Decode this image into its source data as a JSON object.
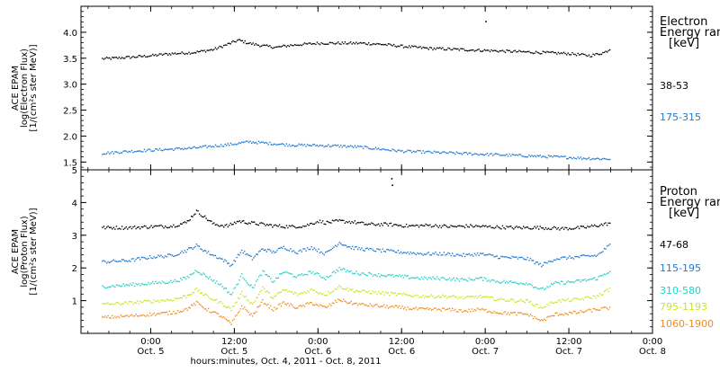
{
  "x_axis": {
    "ticks": [
      {
        "hours": 0,
        "time": "0:00",
        "date": "Oct. 5"
      },
      {
        "hours": 12,
        "time": "12:00",
        "date": "Oct. 5"
      },
      {
        "hours": 24,
        "time": "0:00",
        "date": "Oct. 6"
      },
      {
        "hours": 36,
        "time": "12:00",
        "date": "Oct. 6"
      },
      {
        "hours": 48,
        "time": "0:00",
        "date": "Oct. 7"
      },
      {
        "hours": 60,
        "time": "12:00",
        "date": "Oct. 7"
      },
      {
        "hours": 72,
        "time": "0:00",
        "date": "Oct. 8"
      }
    ],
    "label": "hours:minutes, Oct.  4, 2011 - Oct.  8, 2011"
  },
  "chart_data": [
    {
      "type": "scatter",
      "panel": "electron",
      "ylabel": [
        "ACE EPAM",
        "log(Electron Flux)",
        "[1/(cm²s ster MeV)]"
      ],
      "ylim": [
        1.35,
        4.5
      ],
      "yticks": [
        "1.5",
        "2.0",
        "2.5",
        "3.0",
        "3.5",
        "4.0"
      ],
      "legend_title": [
        "Electron",
        "Energy ran",
        "[keV]"
      ],
      "series": [
        {
          "name": "38-53",
          "color": "#000000",
          "points": [
            [
              -7,
              3.5
            ],
            [
              -3,
              3.53
            ],
            [
              0,
              3.56
            ],
            [
              3,
              3.6
            ],
            [
              6,
              3.62
            ],
            [
              9,
              3.68
            ],
            [
              11,
              3.78
            ],
            [
              12.5,
              3.86
            ],
            [
              14,
              3.8
            ],
            [
              16,
              3.75
            ],
            [
              18,
              3.72
            ],
            [
              20,
              3.76
            ],
            [
              22,
              3.78
            ],
            [
              24,
              3.8
            ],
            [
              27,
              3.8
            ],
            [
              30,
              3.8
            ],
            [
              33,
              3.78
            ],
            [
              36,
              3.74
            ],
            [
              40,
              3.7
            ],
            [
              44,
              3.68
            ],
            [
              48,
              3.66
            ],
            [
              52,
              3.64
            ],
            [
              56,
              3.62
            ],
            [
              60,
              3.6
            ],
            [
              63,
              3.56
            ],
            [
              65,
              3.62
            ],
            [
              66,
              3.7
            ]
          ]
        },
        {
          "name": "175-315",
          "color": "#1e78d2",
          "points": [
            [
              -7,
              1.68
            ],
            [
              -3,
              1.72
            ],
            [
              0,
              1.74
            ],
            [
              3,
              1.76
            ],
            [
              6,
              1.78
            ],
            [
              9,
              1.82
            ],
            [
              12,
              1.86
            ],
            [
              14,
              1.9
            ],
            [
              16,
              1.88
            ],
            [
              18,
              1.86
            ],
            [
              20,
              1.84
            ],
            [
              24,
              1.83
            ],
            [
              27,
              1.82
            ],
            [
              30,
              1.8
            ],
            [
              33,
              1.76
            ],
            [
              36,
              1.72
            ],
            [
              40,
              1.7
            ],
            [
              44,
              1.68
            ],
            [
              48,
              1.66
            ],
            [
              52,
              1.64
            ],
            [
              56,
              1.62
            ],
            [
              60,
              1.6
            ],
            [
              63,
              1.58
            ],
            [
              66,
              1.57
            ]
          ]
        }
      ],
      "outliers": [
        [
          48,
          4.22
        ]
      ]
    },
    {
      "type": "scatter",
      "panel": "proton",
      "ylabel": [
        "ACE EPAM",
        "log(Proton Flux)",
        "[1/(cm²s ster MeV)]"
      ],
      "ylim": [
        0,
        5.0
      ],
      "yticks": [
        "1",
        "2",
        "3",
        "4",
        "5"
      ],
      "legend_title": [
        "Proton",
        "Energy ran",
        "[keV]"
      ],
      "series": [
        {
          "name": "47-68",
          "color": "#000000",
          "points": [
            [
              -7,
              3.25
            ],
            [
              -3,
              3.25
            ],
            [
              0,
              3.28
            ],
            [
              3,
              3.3
            ],
            [
              5,
              3.4
            ],
            [
              6.5,
              3.75
            ],
            [
              7.5,
              3.6
            ],
            [
              9,
              3.35
            ],
            [
              11,
              3.3
            ],
            [
              12.5,
              3.45
            ],
            [
              14,
              3.4
            ],
            [
              16,
              3.35
            ],
            [
              18,
              3.3
            ],
            [
              20,
              3.28
            ],
            [
              22,
              3.3
            ],
            [
              24,
              3.45
            ],
            [
              25,
              3.4
            ],
            [
              27,
              3.45
            ],
            [
              29,
              3.42
            ],
            [
              31,
              3.35
            ],
            [
              34,
              3.35
            ],
            [
              37,
              3.3
            ],
            [
              40,
              3.32
            ],
            [
              43,
              3.28
            ],
            [
              46,
              3.3
            ],
            [
              48,
              3.28
            ],
            [
              52,
              3.25
            ],
            [
              56,
              3.25
            ],
            [
              59,
              3.22
            ],
            [
              62,
              3.25
            ],
            [
              65,
              3.35
            ],
            [
              66,
              3.4
            ]
          ]
        },
        {
          "name": "115-195",
          "color": "#1e78d2",
          "points": [
            [
              -7,
              2.2
            ],
            [
              -3,
              2.25
            ],
            [
              0,
              2.35
            ],
            [
              3,
              2.4
            ],
            [
              5,
              2.55
            ],
            [
              6.5,
              2.7
            ],
            [
              8,
              2.5
            ],
            [
              10,
              2.3
            ],
            [
              11.5,
              2.1
            ],
            [
              13,
              2.55
            ],
            [
              14.5,
              2.3
            ],
            [
              16,
              2.6
            ],
            [
              17.5,
              2.5
            ],
            [
              19,
              2.65
            ],
            [
              21,
              2.5
            ],
            [
              23,
              2.65
            ],
            [
              25,
              2.45
            ],
            [
              27,
              2.8
            ],
            [
              28.5,
              2.65
            ],
            [
              30,
              2.6
            ],
            [
              33,
              2.55
            ],
            [
              36,
              2.5
            ],
            [
              39,
              2.45
            ],
            [
              42,
              2.45
            ],
            [
              45,
              2.4
            ],
            [
              47,
              2.45
            ],
            [
              50,
              2.35
            ],
            [
              54,
              2.3
            ],
            [
              56,
              2.1
            ],
            [
              58,
              2.3
            ],
            [
              61,
              2.35
            ],
            [
              64,
              2.4
            ],
            [
              66,
              2.75
            ]
          ]
        },
        {
          "name": "310-580",
          "color": "#20d2c8",
          "points": [
            [
              -7,
              1.45
            ],
            [
              -3,
              1.5
            ],
            [
              0,
              1.55
            ],
            [
              3,
              1.6
            ],
            [
              5,
              1.7
            ],
            [
              6.5,
              1.95
            ],
            [
              8,
              1.75
            ],
            [
              10,
              1.5
            ],
            [
              11.5,
              1.2
            ],
            [
              13,
              1.8
            ],
            [
              14.5,
              1.4
            ],
            [
              16,
              1.9
            ],
            [
              17.5,
              1.6
            ],
            [
              19,
              1.9
            ],
            [
              21,
              1.75
            ],
            [
              23,
              1.9
            ],
            [
              25,
              1.7
            ],
            [
              27,
              2.0
            ],
            [
              28.5,
              1.9
            ],
            [
              30,
              1.85
            ],
            [
              33,
              1.8
            ],
            [
              36,
              1.75
            ],
            [
              39,
              1.7
            ],
            [
              42,
              1.7
            ],
            [
              45,
              1.65
            ],
            [
              47,
              1.7
            ],
            [
              50,
              1.6
            ],
            [
              54,
              1.55
            ],
            [
              56,
              1.35
            ],
            [
              58,
              1.55
            ],
            [
              61,
              1.6
            ],
            [
              64,
              1.7
            ],
            [
              66,
              1.95
            ]
          ]
        },
        {
          "name": "795-1193",
          "color": "#c8e61e",
          "points": [
            [
              -7,
              0.9
            ],
            [
              -3,
              0.95
            ],
            [
              0,
              1.0
            ],
            [
              3,
              1.05
            ],
            [
              5,
              1.15
            ],
            [
              6.5,
              1.35
            ],
            [
              8,
              1.15
            ],
            [
              10,
              0.95
            ],
            [
              11.5,
              0.75
            ],
            [
              13,
              1.25
            ],
            [
              14.5,
              0.9
            ],
            [
              16,
              1.4
            ],
            [
              17.5,
              1.1
            ],
            [
              19,
              1.35
            ],
            [
              21,
              1.2
            ],
            [
              23,
              1.35
            ],
            [
              25,
              1.2
            ],
            [
              27,
              1.45
            ],
            [
              28.5,
              1.35
            ],
            [
              30,
              1.3
            ],
            [
              33,
              1.25
            ],
            [
              36,
              1.2
            ],
            [
              39,
              1.15
            ],
            [
              42,
              1.15
            ],
            [
              45,
              1.1
            ],
            [
              47,
              1.15
            ],
            [
              50,
              1.05
            ],
            [
              54,
              1.0
            ],
            [
              56,
              0.8
            ],
            [
              58,
              1.0
            ],
            [
              61,
              1.05
            ],
            [
              64,
              1.15
            ],
            [
              66,
              1.4
            ]
          ]
        },
        {
          "name": "1060-1900",
          "color": "#f08c1e",
          "points": [
            [
              -7,
              0.5
            ],
            [
              -3,
              0.55
            ],
            [
              0,
              0.6
            ],
            [
              3,
              0.65
            ],
            [
              5,
              0.75
            ],
            [
              6.5,
              0.95
            ],
            [
              8,
              0.75
            ],
            [
              10,
              0.55
            ],
            [
              11.5,
              0.3
            ],
            [
              13,
              0.85
            ],
            [
              14.5,
              0.55
            ],
            [
              16,
              1.0
            ],
            [
              17.5,
              0.75
            ],
            [
              19,
              0.95
            ],
            [
              21,
              0.8
            ],
            [
              23,
              0.95
            ],
            [
              25,
              0.8
            ],
            [
              27,
              1.05
            ],
            [
              28.5,
              0.95
            ],
            [
              30,
              0.9
            ],
            [
              33,
              0.85
            ],
            [
              36,
              0.8
            ],
            [
              39,
              0.75
            ],
            [
              42,
              0.75
            ],
            [
              45,
              0.7
            ],
            [
              47,
              0.75
            ],
            [
              50,
              0.65
            ],
            [
              54,
              0.6
            ],
            [
              56,
              0.4
            ],
            [
              58,
              0.6
            ],
            [
              61,
              0.65
            ],
            [
              64,
              0.75
            ],
            [
              66,
              0.8
            ]
          ]
        }
      ],
      "outliers": [
        [
          34.5,
          4.75
        ],
        [
          34.6,
          4.55
        ]
      ]
    }
  ]
}
